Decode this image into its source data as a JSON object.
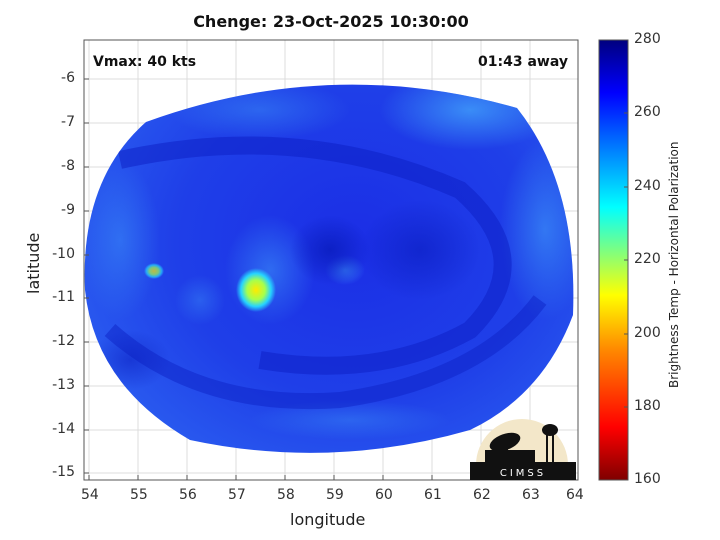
{
  "figure": {
    "title": "Chenge: 23-Oct-2025 10:30:00",
    "top_left_annotation": "Vmax: 40 kts",
    "top_right_annotation": "01:43 away",
    "xlabel": "longitude",
    "ylabel": "latitude",
    "x_ticks": [
      "54",
      "55",
      "56",
      "57",
      "58",
      "59",
      "60",
      "61",
      "62",
      "63",
      "64"
    ],
    "y_ticks": [
      "-6",
      "-7",
      "-8",
      "-9",
      "-10",
      "-11",
      "-12",
      "-13",
      "-14",
      "-15"
    ],
    "logo_text": "CIMSS"
  },
  "colorbar": {
    "label": "Brightness Temp - Horizontal Polarization",
    "ticks": [
      "280",
      "260",
      "240",
      "220",
      "200",
      "180",
      "160"
    ],
    "range": [
      160,
      280
    ],
    "colors": [
      "#7f0000",
      "#ff0000",
      "#ff8c00",
      "#ffff00",
      "#7fff7f",
      "#00ffff",
      "#0080ff",
      "#0000ff",
      "#00007f"
    ]
  },
  "axes": {
    "xlim": [
      54,
      64
    ],
    "ylim": [
      -15.2,
      -5.2
    ]
  }
}
